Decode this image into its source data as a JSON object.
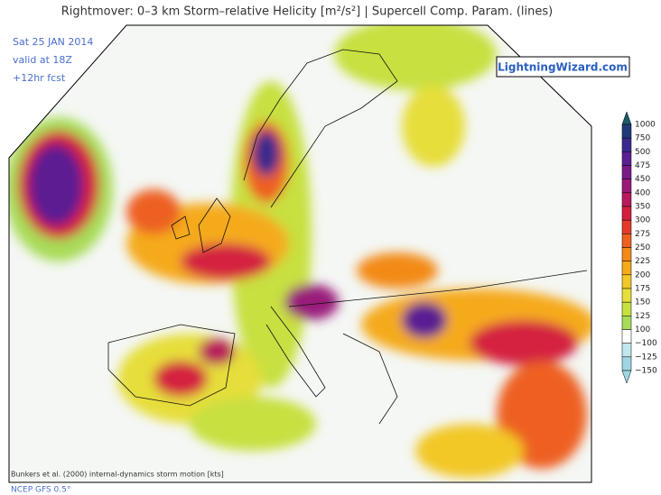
{
  "header": {
    "title": "Rightmover: 0–3 km Storm–relative Helicity [m²/s²] | Supercell Comp. Param. (lines)"
  },
  "info": {
    "lines": [
      "Sat 25 JAN 2014",
      "valid at 18Z",
      "+12hr fcst"
    ]
  },
  "logo": "LightningWizard.com",
  "colorbar": {
    "ticks": [
      "1000",
      "750",
      "500",
      "475",
      "450",
      "400",
      "350",
      "300",
      "275",
      "250",
      "225",
      "200",
      "175",
      "150",
      "125",
      "100",
      "−100",
      "−125",
      "−150"
    ],
    "colors": [
      "#1d5a66",
      "#1f3a78",
      "#3b2a8c",
      "#5b1f92",
      "#7a1a8a",
      "#9a1a7a",
      "#b81b5c",
      "#d42040",
      "#e43a2a",
      "#ee6020",
      "#f38a18",
      "#f5aa1a",
      "#f2c828",
      "#e6de3a",
      "#c8e040",
      "#a8dc58",
      "#ffffff",
      "#bfe8ee",
      "#9fd6e4"
    ]
  },
  "footer": {
    "note": "Bunkers et al. (2000) internal-dynamics storm motion [kts]",
    "source": "NCEP GFS 0.5°"
  }
}
